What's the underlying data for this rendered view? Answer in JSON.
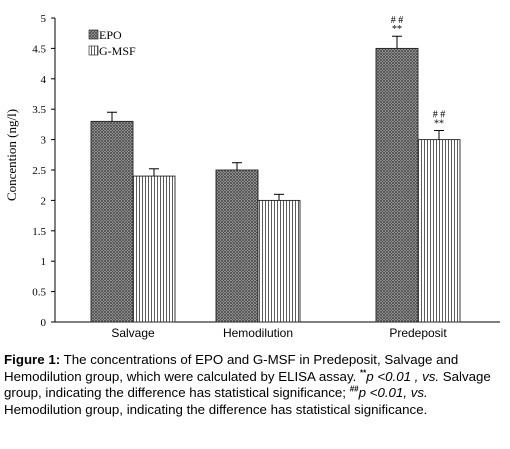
{
  "chart_data": {
    "type": "bar",
    "categories": [
      "Salvage",
      "Hemodilution",
      "Predeposit"
    ],
    "series": [
      {
        "name": "EPO",
        "values": [
          3.3,
          2.5,
          4.5
        ],
        "errors": [
          0.15,
          0.12,
          0.2
        ],
        "pattern": "crosshatch"
      },
      {
        "name": "G-MSF",
        "values": [
          2.4,
          2.0,
          3.0
        ],
        "errors": [
          0.12,
          0.1,
          0.15
        ],
        "pattern": "vertical-lines"
      }
    ],
    "ylabel": "Concention (ng/l)",
    "xlabel": "",
    "ylim": [
      0,
      5
    ],
    "yticks": [
      "0",
      "0.5",
      "1",
      "1.5",
      "2",
      "2.5",
      "3",
      "3.5",
      "4",
      "4.5",
      "5"
    ],
    "legend_position": "top-left",
    "grid": false,
    "annotations": [
      {
        "category": "Predeposit",
        "series": "EPO",
        "lines": [
          "# #",
          "**"
        ]
      },
      {
        "category": "Predeposit",
        "series": "G-MSF",
        "lines": [
          "# #",
          "**"
        ]
      }
    ]
  },
  "caption": {
    "label": "Figure 1:",
    "text1": " The concentrations of EPO and G-MSF in Predeposit, Salvage and Hemodilution group, which were calculated by ELISA assay. ",
    "mark1": "**",
    "italic1": "p <0.01 , vs.",
    "text2": " Salvage group, indicating the difference has statistical significance; ",
    "mark2": "##",
    "italic2": "p <0.01, vs.",
    "text3": " Hemodilution group, indicating the difference has statistical significance."
  }
}
